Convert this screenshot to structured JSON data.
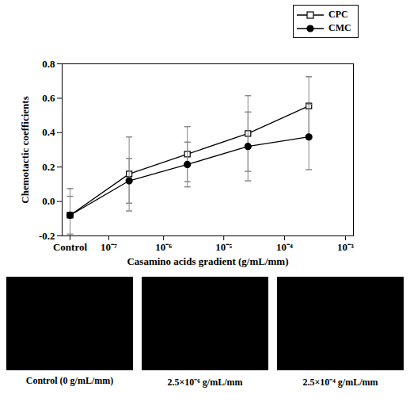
{
  "chart_data": {
    "type": "line",
    "x_label": "Casamino acids gradient (g/mL/mm)",
    "y_label": "Chemotactic coefficients",
    "x": [
      0,
      2.5e-07,
      2.5e-06,
      2.5e-05,
      0.00025
    ],
    "series": [
      {
        "name": "CPC",
        "color": "#000000",
        "marker": "square-open",
        "values": [
          -0.08,
          0.16,
          0.275,
          0.395,
          0.555
        ],
        "errors": [
          0.155,
          0.215,
          0.16,
          0.22,
          0.17
        ]
      },
      {
        "name": "CMC",
        "color": "#000000",
        "marker": "circle",
        "values": [
          -0.08,
          0.12,
          0.215,
          0.32,
          0.375
        ],
        "errors": [
          0.11,
          0.13,
          0.13,
          0.2,
          0.19
        ]
      }
    ],
    "log": "x",
    "xlim": [
      0,
      0.001
    ],
    "xticks": [
      {
        "value": 0,
        "label": "Control"
      },
      {
        "value": 1e-07,
        "label": "10⁻⁷"
      },
      {
        "value": 1e-06,
        "label": "10⁻⁶"
      },
      {
        "value": 1e-05,
        "label": "10⁻⁵"
      },
      {
        "value": 0.0001,
        "label": "10⁻⁴"
      },
      {
        "value": 0.001,
        "label": "10⁻³"
      }
    ],
    "ylim": [
      -0.2,
      0.8
    ],
    "yticks": [
      -0.2,
      {
        "value": 0,
        "label": "0.0"
      },
      0.2,
      0.4,
      0.6,
      0.8
    ],
    "grid": false,
    "legend": "top-right"
  },
  "images": [
    {
      "caption": "Control (0 g/mL/mm)"
    },
    {
      "caption": "2.5×10⁻⁶ g/mL/mm"
    },
    {
      "caption": "2.5×10⁻⁴ g/mL/mm"
    }
  ]
}
